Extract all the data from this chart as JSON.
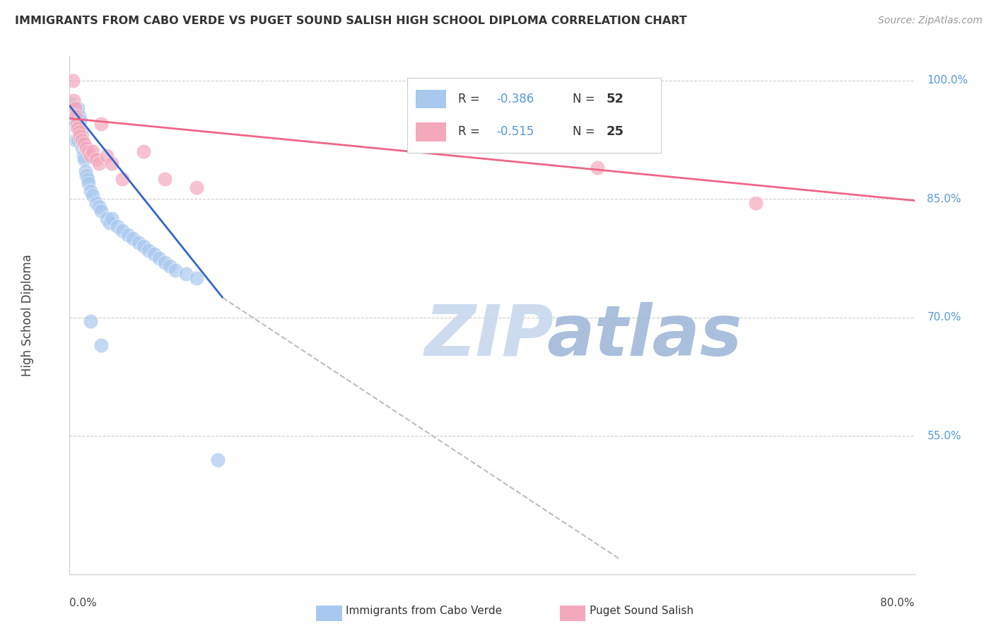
{
  "title": "IMMIGRANTS FROM CABO VERDE VS PUGET SOUND SALISH HIGH SCHOOL DIPLOMA CORRELATION CHART",
  "source": "Source: ZipAtlas.com",
  "xlabel_bottom_left": "0.0%",
  "xlabel_bottom_right": "80.0%",
  "ylabel": "High School Diploma",
  "right_ytick_labels": [
    "100.0%",
    "85.0%",
    "70.0%",
    "55.0%"
  ],
  "right_ytick_values": [
    1.0,
    0.85,
    0.7,
    0.55
  ],
  "xlim": [
    0.0,
    0.8
  ],
  "ylim": [
    0.375,
    1.03
  ],
  "legend_r1": "R = -0.386",
  "legend_n1": "N = 52",
  "legend_r2": "R = -0.515",
  "legend_n2": "N = 25",
  "blue_color": "#A8C8EE",
  "pink_color": "#F4A8BC",
  "blue_line_color": "#3366CC",
  "pink_line_color": "#EE6688",
  "dashed_line_color": "#BBBBCC",
  "watermark_zip_color": "#D0DCEE",
  "watermark_atlas_color": "#B0C4DE",
  "background_color": "#FFFFFF",
  "blue_scatter_x": [
    0.001,
    0.002,
    0.003,
    0.003,
    0.004,
    0.005,
    0.005,
    0.006,
    0.006,
    0.006,
    0.007,
    0.007,
    0.008,
    0.008,
    0.009,
    0.009,
    0.01,
    0.01,
    0.011,
    0.012,
    0.012,
    0.013,
    0.014,
    0.015,
    0.016,
    0.017,
    0.018,
    0.02,
    0.022,
    0.025,
    0.028,
    0.03,
    0.035,
    0.038,
    0.04,
    0.045,
    0.05,
    0.055,
    0.06,
    0.065,
    0.07,
    0.075,
    0.08,
    0.085,
    0.09,
    0.095,
    0.1,
    0.11,
    0.12,
    0.14,
    0.02,
    0.03
  ],
  "blue_scatter_y": [
    0.97,
    0.96,
    0.965,
    0.955,
    0.955,
    0.96,
    0.945,
    0.965,
    0.945,
    0.925,
    0.96,
    0.94,
    0.965,
    0.925,
    0.955,
    0.935,
    0.95,
    0.935,
    0.935,
    0.93,
    0.915,
    0.905,
    0.9,
    0.885,
    0.88,
    0.875,
    0.87,
    0.86,
    0.855,
    0.845,
    0.84,
    0.835,
    0.825,
    0.82,
    0.825,
    0.815,
    0.81,
    0.805,
    0.8,
    0.795,
    0.79,
    0.785,
    0.78,
    0.775,
    0.77,
    0.765,
    0.76,
    0.755,
    0.75,
    0.52,
    0.695,
    0.665
  ],
  "pink_scatter_x": [
    0.003,
    0.004,
    0.005,
    0.006,
    0.007,
    0.008,
    0.009,
    0.01,
    0.012,
    0.014,
    0.016,
    0.018,
    0.02,
    0.022,
    0.025,
    0.028,
    0.03,
    0.035,
    0.04,
    0.05,
    0.07,
    0.09,
    0.12,
    0.5,
    0.65
  ],
  "pink_scatter_y": [
    1.0,
    0.975,
    0.965,
    0.955,
    0.945,
    0.94,
    0.935,
    0.93,
    0.925,
    0.92,
    0.915,
    0.91,
    0.905,
    0.91,
    0.9,
    0.895,
    0.945,
    0.905,
    0.895,
    0.875,
    0.91,
    0.875,
    0.865,
    0.89,
    0.845
  ],
  "blue_trend_x0": 0.0,
  "blue_trend_x1": 0.145,
  "blue_trend_y0": 0.968,
  "blue_trend_y1": 0.725,
  "pink_trend_x0": 0.0,
  "pink_trend_x1": 0.8,
  "pink_trend_y0": 0.952,
  "pink_trend_y1": 0.848,
  "dashed_trend_x0": 0.145,
  "dashed_trend_x1": 0.52,
  "dashed_trend_y0": 0.725,
  "dashed_trend_y1": 0.395
}
